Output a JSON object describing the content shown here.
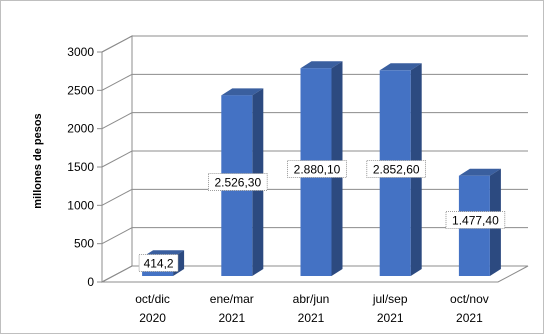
{
  "chart_data": {
    "type": "bar",
    "three_d": true,
    "title": "",
    "xlabel": "",
    "ylabel": "millones de pesos",
    "ylim": [
      0,
      3000
    ],
    "yticks": [
      "0",
      "500",
      "1000",
      "1500",
      "2000",
      "2500",
      "3000"
    ],
    "grid": true,
    "legend": "none",
    "categories": [
      [
        "oct/dic",
        "2020"
      ],
      [
        "ene/mar",
        "2021"
      ],
      [
        "abr/jun",
        "2021"
      ],
      [
        "jul/sep",
        "2021"
      ],
      [
        "oct/nov",
        "2021"
      ]
    ],
    "values": [
      414.2,
      2526.3,
      2880.1,
      2852.6,
      1477.4
    ],
    "data_labels": [
      "414,2",
      "2.526,30",
      "2.880,10",
      "2.852,60",
      "1.477,40"
    ],
    "bar_color": "#4472c4"
  }
}
